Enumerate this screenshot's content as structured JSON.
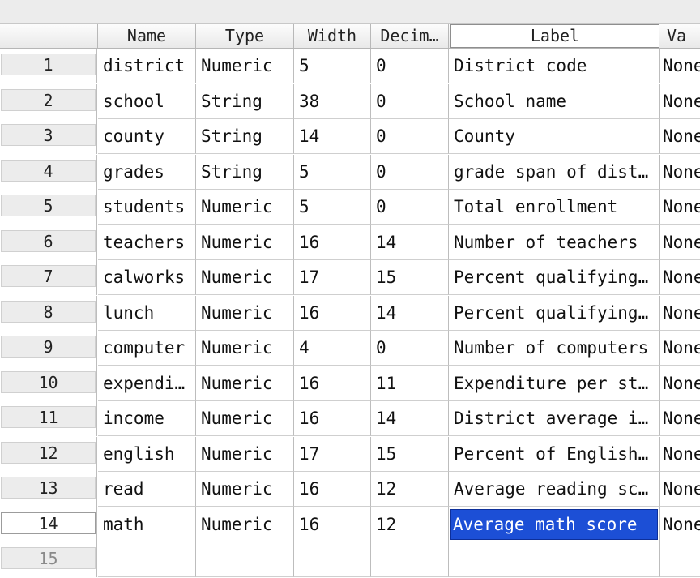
{
  "columns": [
    "Name",
    "Type",
    "Width",
    "Decim…",
    "Label",
    "Va"
  ],
  "rows": [
    {
      "num": "1",
      "name": "district",
      "type": "Numeric",
      "width": "5",
      "decimals": "0",
      "label": "District code",
      "values": "None"
    },
    {
      "num": "2",
      "name": "school",
      "type": "String",
      "width": "38",
      "decimals": "0",
      "label": "School name",
      "values": "None"
    },
    {
      "num": "3",
      "name": "county",
      "type": "String",
      "width": "14",
      "decimals": "0",
      "label": "County",
      "values": "None"
    },
    {
      "num": "4",
      "name": "grades",
      "type": "String",
      "width": "5",
      "decimals": "0",
      "label": "grade span of dist…",
      "values": "None"
    },
    {
      "num": "5",
      "name": "students",
      "type": "Numeric",
      "width": "5",
      "decimals": "0",
      "label": "Total enrollment",
      "values": "None"
    },
    {
      "num": "6",
      "name": "teachers",
      "type": "Numeric",
      "width": "16",
      "decimals": "14",
      "label": "Number of teachers",
      "values": "None"
    },
    {
      "num": "7",
      "name": "calworks",
      "type": "Numeric",
      "width": "17",
      "decimals": "15",
      "label": "Percent qualifying…",
      "values": "None"
    },
    {
      "num": "8",
      "name": "lunch",
      "type": "Numeric",
      "width": "16",
      "decimals": "14",
      "label": "Percent qualifying…",
      "values": "None"
    },
    {
      "num": "9",
      "name": "computer",
      "type": "Numeric",
      "width": "4",
      "decimals": "0",
      "label": "Number of computers",
      "values": "None"
    },
    {
      "num": "10",
      "name": "expendi…",
      "type": "Numeric",
      "width": "16",
      "decimals": "11",
      "label": "Expenditure per st…",
      "values": "None"
    },
    {
      "num": "11",
      "name": "income",
      "type": "Numeric",
      "width": "16",
      "decimals": "14",
      "label": "District average i…",
      "values": "None"
    },
    {
      "num": "12",
      "name": "english",
      "type": "Numeric",
      "width": "17",
      "decimals": "15",
      "label": "Percent of English…",
      "values": "None"
    },
    {
      "num": "13",
      "name": "read",
      "type": "Numeric",
      "width": "16",
      "decimals": "12",
      "label": "Average reading sc…",
      "values": "None"
    },
    {
      "num": "14",
      "name": "math",
      "type": "Numeric",
      "width": "16",
      "decimals": "12",
      "label": "Average math score",
      "values": "None"
    },
    {
      "num": "15",
      "name": "",
      "type": "",
      "width": "",
      "decimals": "",
      "label": "",
      "values": ""
    }
  ],
  "selection": {
    "row": "14",
    "column": "Label"
  },
  "colors": {
    "selection": "#1c4fd6",
    "header": "#ececec"
  }
}
